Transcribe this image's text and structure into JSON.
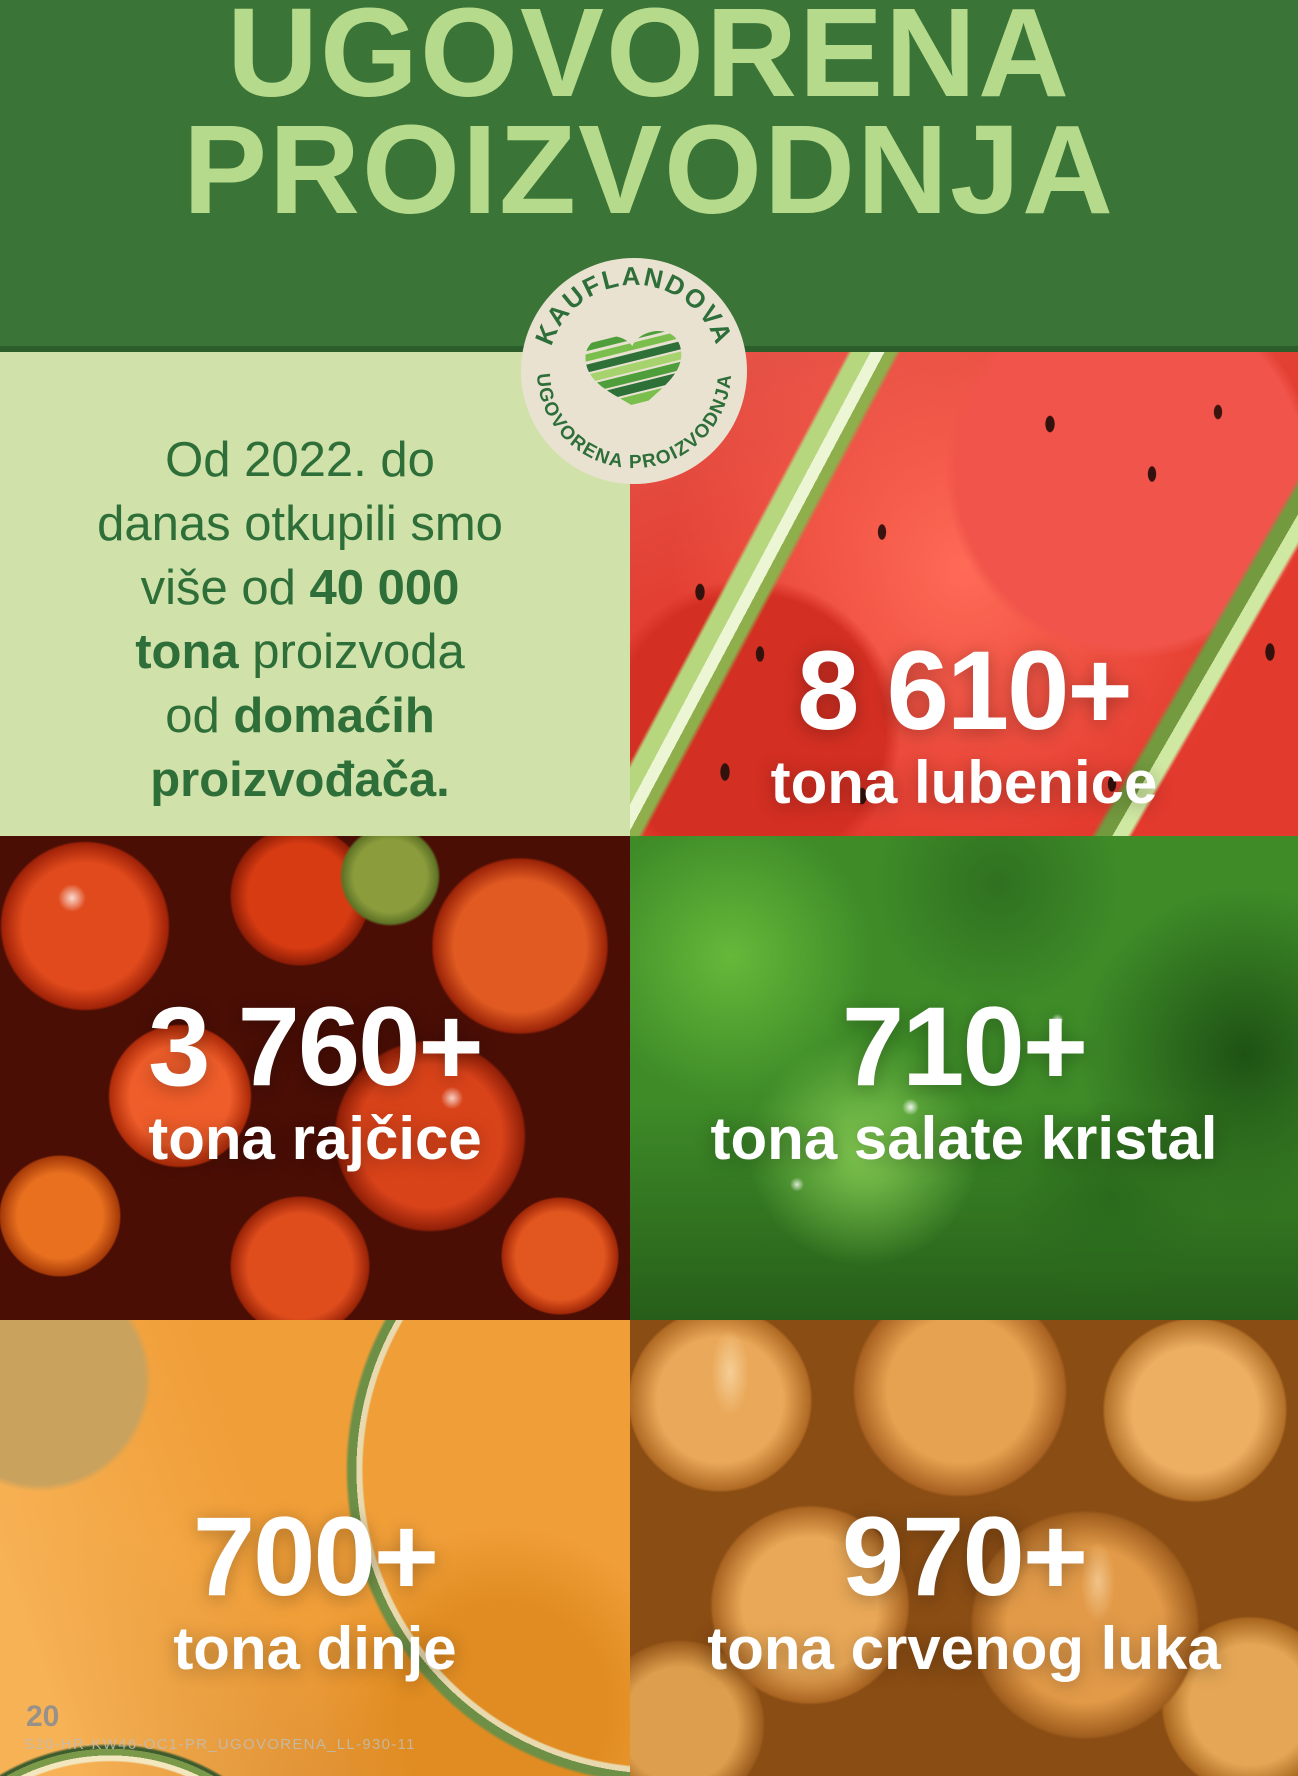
{
  "page": {
    "title_line1": "UGOVORENA",
    "title_line2": "PROIZVODNJA",
    "page_number": "20",
    "footer_code": "S20-HR-KW46-OC1-PR_UGOVORENA_LL-930-11"
  },
  "badge": {
    "top_text": "KAUFLANDOVA",
    "bottom_text": "UGOVORENA PROIZVODNJA"
  },
  "intro": {
    "lines": [
      [
        {
          "t": "Od 2022. do",
          "b": false
        }
      ],
      [
        {
          "t": "danas otkupili smo",
          "b": false
        }
      ],
      [
        {
          "t": "više od ",
          "b": false
        },
        {
          "t": "40 000",
          "b": true
        }
      ],
      [
        {
          "t": "tona",
          "b": true
        },
        {
          "t": " proizvoda",
          "b": false
        }
      ],
      [
        {
          "t": "od ",
          "b": false
        },
        {
          "t": "domaćih",
          "b": true
        }
      ],
      [
        {
          "t": "proizvođača.",
          "b": true
        }
      ]
    ]
  },
  "stats": [
    {
      "id": "lubenice",
      "value": "8 610+",
      "label": "tona lubenice",
      "photo": "watermelon"
    },
    {
      "id": "rajcice",
      "value": "3 760+",
      "label": "tona rajčice",
      "photo": "tomato"
    },
    {
      "id": "salata",
      "value": "710+",
      "label": "tona salate kristal",
      "photo": "lettuce"
    },
    {
      "id": "dinja",
      "value": "700+",
      "label": "tona dinje",
      "photo": "melon"
    },
    {
      "id": "luk",
      "value": "970+",
      "label": "tona crvenog luka",
      "photo": "onion"
    }
  ],
  "colors": {
    "header_green": "#3a7437",
    "header_divider": "#2b5e2a",
    "title_green": "#b6da8c",
    "panel_bg": "#d0e2aa",
    "text_green": "#2e6e38",
    "badge_bg": "#e9e2d1",
    "badge_green": "#2d6e39",
    "stat_text": "#ffffff",
    "footer_gray": "#8f8f8f"
  }
}
